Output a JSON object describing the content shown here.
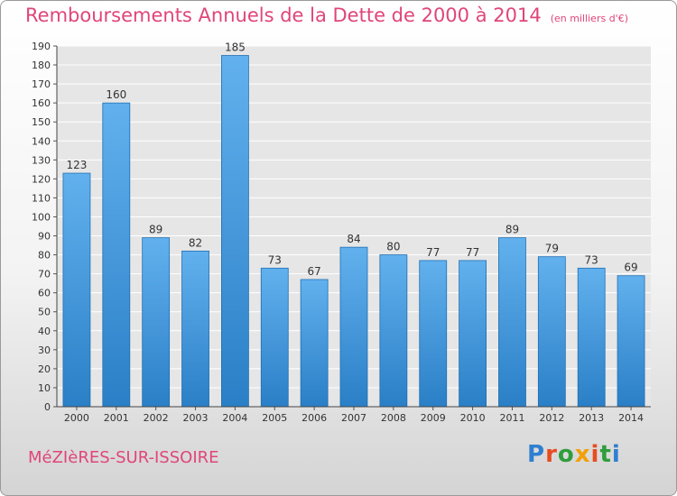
{
  "title": "Remboursements Annuels de la Dette de 2000 à 2014",
  "unit": "(en milliers d'€)",
  "city": "MéZIèRES-SUR-ISSOIRE",
  "brand": "Proxiti",
  "brand_colors": [
    "#2f7fd1",
    "#e84c1f",
    "#2f9e3c",
    "#f2a007",
    "#e84c1f",
    "#2f9e3c",
    "#2f7fd1"
  ],
  "chart_data": {
    "type": "bar",
    "categories": [
      "2000",
      "2001",
      "2002",
      "2003",
      "2004",
      "2005",
      "2006",
      "2007",
      "2008",
      "2009",
      "2010",
      "2011",
      "2012",
      "2013",
      "2014"
    ],
    "values": [
      123,
      160,
      89,
      82,
      185,
      73,
      67,
      84,
      80,
      77,
      77,
      89,
      79,
      73,
      69
    ],
    "ylim": [
      0,
      190
    ],
    "ytick_step": 10,
    "grid": true,
    "bar_color_top": "#62b1ee",
    "bar_color_bottom": "#2a7fc6"
  }
}
